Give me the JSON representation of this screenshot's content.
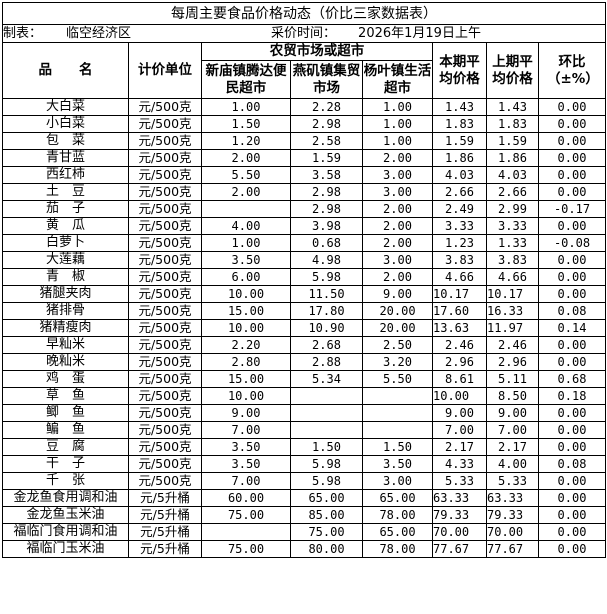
{
  "title": "每周主要食品价格动态（价比三家数据表）",
  "info": {
    "maker_label": "制表：",
    "maker": "临空经济区",
    "time_label": "采价时间：",
    "time": "2026年1月19日上午"
  },
  "header": {
    "name": "品　　名",
    "unit": "计价单位",
    "group": "农贸市场或超市",
    "market1": "新庙镇腾达便民超市",
    "market2": "燕矶镇集贸市场",
    "market3": "杨叶镇生活超市",
    "cur_avg": "本期平均价格",
    "prev_avg": "上期平均价格",
    "change": "环比（±%）"
  },
  "rows": [
    [
      "大白菜",
      "元/500克",
      "1.00",
      "2.28",
      "1.00",
      "1.43",
      "1.43",
      "0.00"
    ],
    [
      "小白菜",
      "元/500克",
      "1.50",
      "2.98",
      "1.00",
      "1.83",
      "1.83",
      "0.00"
    ],
    [
      "包　菜",
      "元/500克",
      "1.20",
      "2.58",
      "1.00",
      "1.59",
      "1.59",
      "0.00"
    ],
    [
      "青甘蓝",
      "元/500克",
      "2.00",
      "1.59",
      "2.00",
      "1.86",
      "1.86",
      "0.00"
    ],
    [
      "西红柿",
      "元/500克",
      "5.50",
      "3.58",
      "3.00",
      "4.03",
      "4.03",
      "0.00"
    ],
    [
      "土　豆",
      "元/500克",
      "2.00",
      "2.98",
      "3.00",
      "2.66",
      "2.66",
      "0.00"
    ],
    [
      "茄　子",
      "元/500克",
      "",
      "2.98",
      "2.00",
      "2.49",
      "2.99",
      "-0.17"
    ],
    [
      "黄　瓜",
      "元/500克",
      "4.00",
      "3.98",
      "2.00",
      "3.33",
      "3.33",
      "0.00"
    ],
    [
      "白萝卜",
      "元/500克",
      "1.00",
      "0.68",
      "2.00",
      "1.23",
      "1.33",
      "-0.08"
    ],
    [
      "大莲藕",
      "元/500克",
      "3.50",
      "4.98",
      "3.00",
      "3.83",
      "3.83",
      "0.00"
    ],
    [
      "青　椒",
      "元/500克",
      "6.00",
      "5.98",
      "2.00",
      "4.66",
      "4.66",
      "0.00"
    ],
    [
      "猪腿夹肉",
      "元/500克",
      "10.00",
      "11.50",
      "9.00",
      "10.17",
      "10.17",
      "0.00"
    ],
    [
      "猪排骨",
      "元/500克",
      "15.00",
      "17.80",
      "20.00",
      "17.60",
      "16.33",
      "0.08"
    ],
    [
      "猪精瘦肉",
      "元/500克",
      "10.00",
      "10.90",
      "20.00",
      "13.63",
      "11.97",
      "0.14"
    ],
    [
      "早籼米",
      "元/500克",
      "2.20",
      "2.68",
      "2.50",
      "2.46",
      "2.46",
      "0.00"
    ],
    [
      "晚籼米",
      "元/500克",
      "2.80",
      "2.88",
      "3.20",
      "2.96",
      "2.96",
      "0.00"
    ],
    [
      "鸡　蛋",
      "元/500克",
      "15.00",
      "5.34",
      "5.50",
      "8.61",
      "5.11",
      "0.68"
    ],
    [
      "草　鱼",
      "元/500克",
      "10.00",
      "",
      "",
      "10.00",
      "8.50",
      "0.18"
    ],
    [
      "鲫　鱼",
      "元/500克",
      "9.00",
      "",
      "",
      "9.00",
      "9.00",
      "0.00"
    ],
    [
      "鳊　鱼",
      "元/500克",
      "7.00",
      "",
      "",
      "7.00",
      "7.00",
      "0.00"
    ],
    [
      "豆　腐",
      "元/500克",
      "3.50",
      "1.50",
      "1.50",
      "2.17",
      "2.17",
      "0.00"
    ],
    [
      "干　子",
      "元/500克",
      "3.50",
      "5.98",
      "3.50",
      "4.33",
      "4.00",
      "0.08"
    ],
    [
      "千　张",
      "元/500克",
      "7.00",
      "5.98",
      "3.00",
      "5.33",
      "5.33",
      "0.00"
    ],
    [
      "金龙鱼食用调和油",
      "元/5升桶",
      "60.00",
      "65.00",
      "65.00",
      "63.33",
      "63.33",
      "0.00"
    ],
    [
      "金龙鱼玉米油",
      "元/5升桶",
      "75.00",
      "85.00",
      "78.00",
      "79.33",
      "79.33",
      "0.00"
    ],
    [
      "福临门食用调和油",
      "元/5升桶",
      "",
      "75.00",
      "65.00",
      "70.00",
      "70.00",
      "0.00"
    ],
    [
      "福临门玉米油",
      "元/5升桶",
      "75.00",
      "80.00",
      "78.00",
      "77.67",
      "77.67",
      "0.00"
    ]
  ]
}
